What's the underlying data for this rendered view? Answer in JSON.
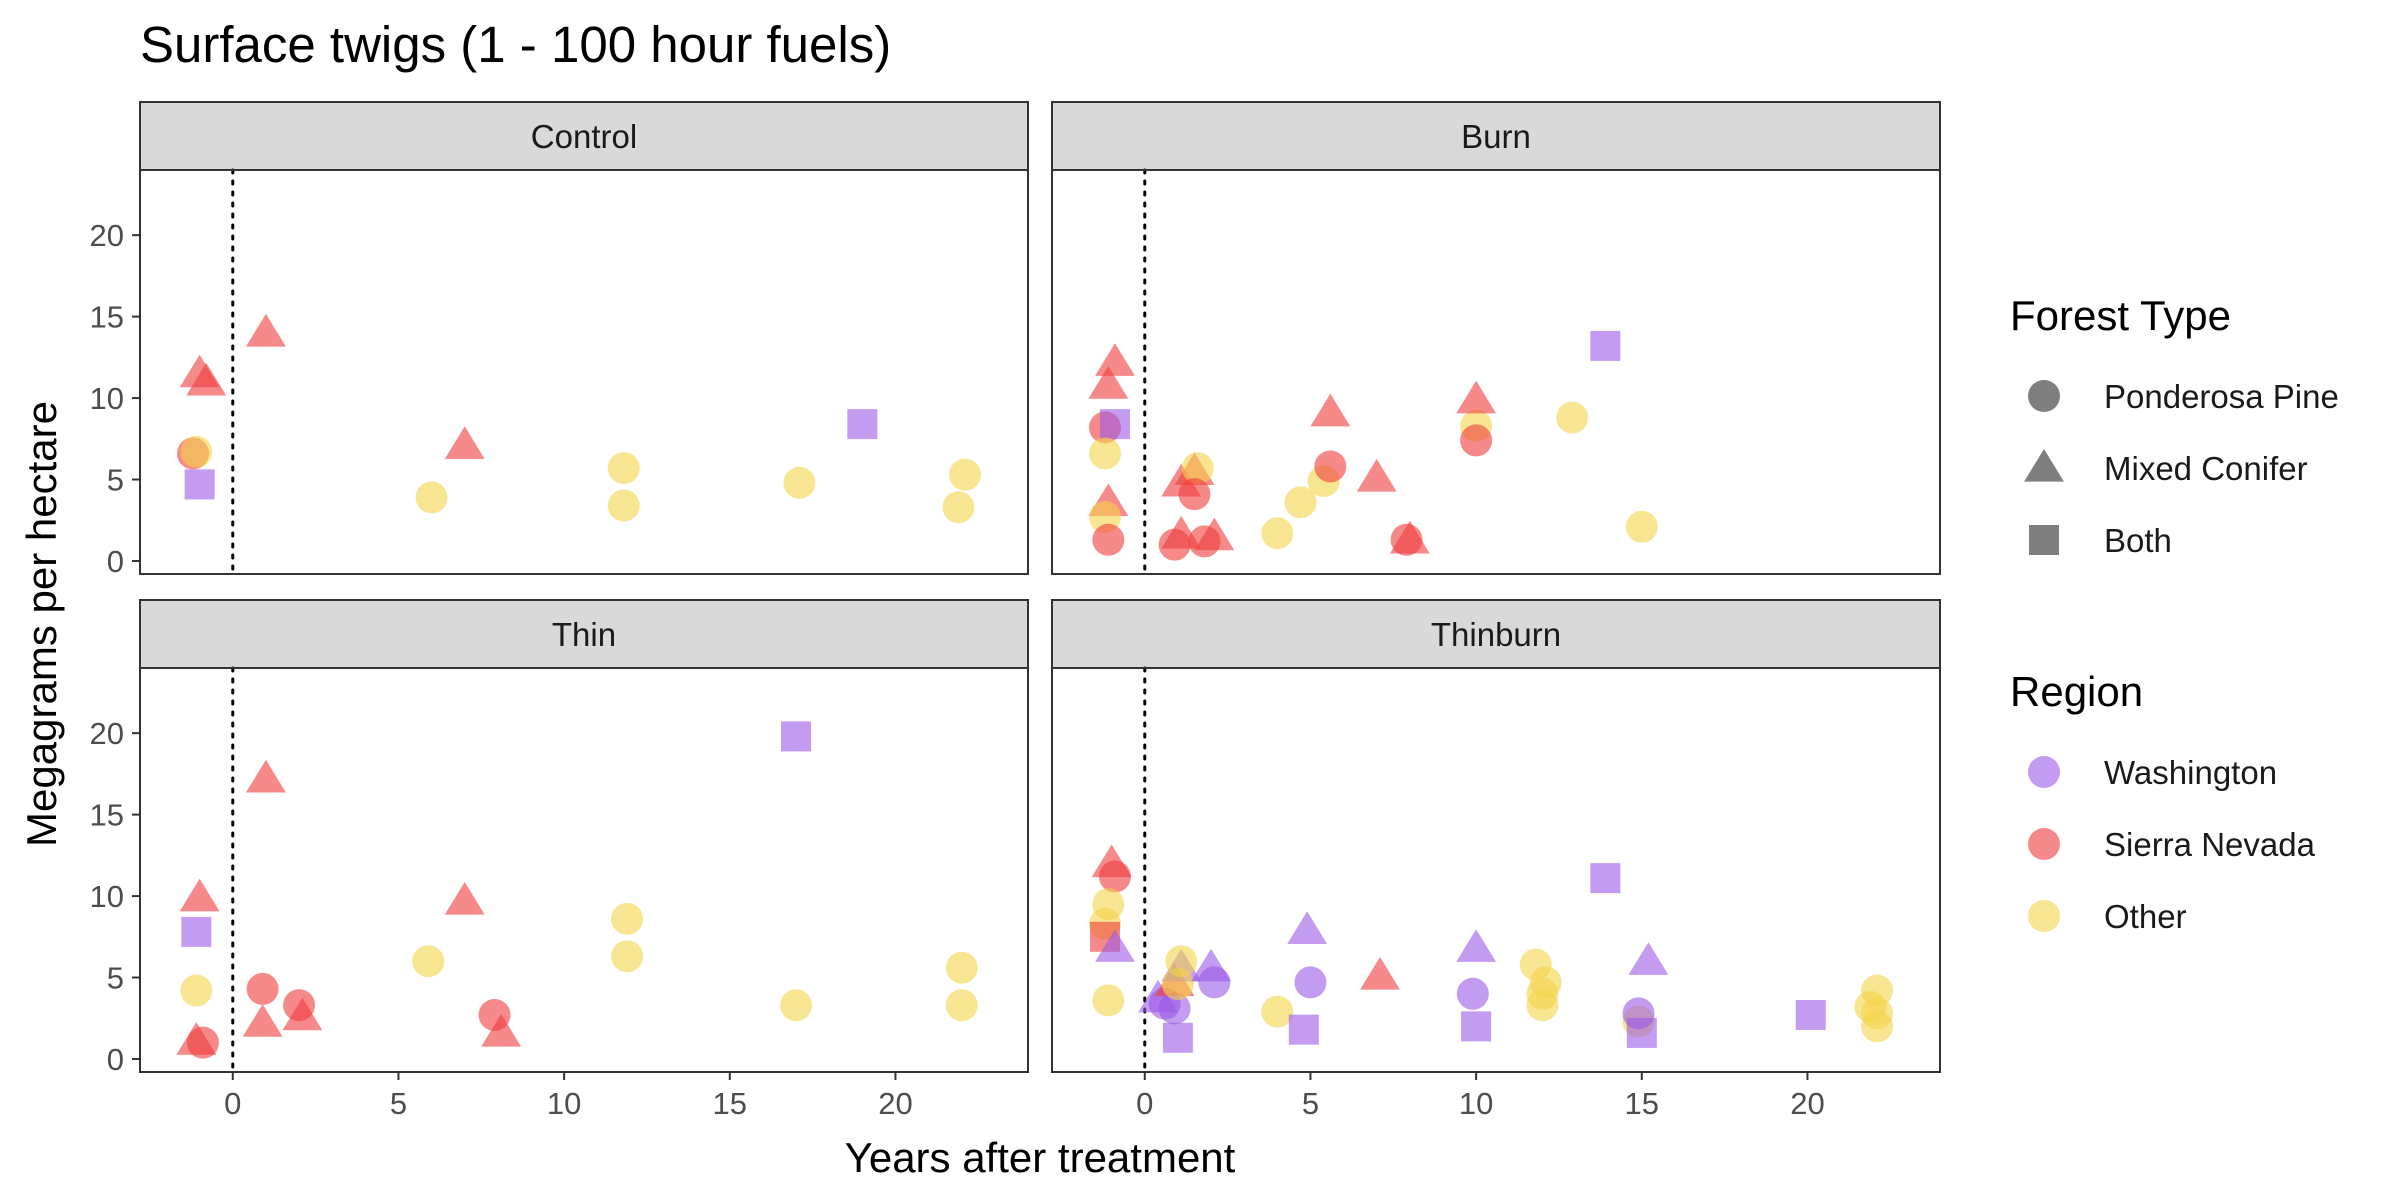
{
  "chart_data": {
    "type": "scatter",
    "title": "Surface twigs (1 - 100 hour fuels)",
    "xlabel": "Years after treatment",
    "ylabel": "Megagrams per hectare",
    "xlim": [
      -2.8,
      24.0
    ],
    "ylim": [
      -0.8,
      24.0
    ],
    "x_ticks": [
      0,
      5,
      10,
      15,
      20
    ],
    "y_ticks": [
      0,
      5,
      10,
      15,
      20
    ],
    "grid": false,
    "reference_line": {
      "x": 0,
      "style": "dotted"
    },
    "legend_position": "right",
    "colors": {
      "Washington": "#9b59e6",
      "Sierra Nevada": "#f03c3c",
      "Other": "#f4d44a"
    },
    "point_opacity": 0.6,
    "legends": {
      "forest_type": {
        "title": "Forest Type",
        "items": [
          {
            "label": "Ponderosa Pine",
            "shape": "circle"
          },
          {
            "label": "Mixed Conifer",
            "shape": "triangle"
          },
          {
            "label": "Both",
            "shape": "square"
          }
        ]
      },
      "region": {
        "title": "Region",
        "items": [
          {
            "label": "Washington"
          },
          {
            "label": "Sierra Nevada"
          },
          {
            "label": "Other"
          }
        ]
      }
    },
    "panels": [
      {
        "name": "Control",
        "points": [
          {
            "x": -1,
            "y": 11.5,
            "shape": "triangle",
            "region": "Sierra Nevada"
          },
          {
            "x": -0.8,
            "y": 11.0,
            "shape": "triangle",
            "region": "Sierra Nevada"
          },
          {
            "x": 1,
            "y": 14.0,
            "shape": "triangle",
            "region": "Sierra Nevada"
          },
          {
            "x": -1.2,
            "y": 6.6,
            "shape": "circle",
            "region": "Sierra Nevada"
          },
          {
            "x": -1.1,
            "y": 6.7,
            "shape": "circle",
            "region": "Other"
          },
          {
            "x": -1,
            "y": 4.7,
            "shape": "square",
            "region": "Washington"
          },
          {
            "x": 7,
            "y": 7.1,
            "shape": "triangle",
            "region": "Sierra Nevada"
          },
          {
            "x": 6,
            "y": 3.9,
            "shape": "circle",
            "region": "Other"
          },
          {
            "x": 11.8,
            "y": 5.7,
            "shape": "circle",
            "region": "Other"
          },
          {
            "x": 11.8,
            "y": 3.4,
            "shape": "circle",
            "region": "Other"
          },
          {
            "x": 17.1,
            "y": 4.8,
            "shape": "circle",
            "region": "Other"
          },
          {
            "x": 19,
            "y": 8.4,
            "shape": "square",
            "region": "Washington"
          },
          {
            "x": 22.1,
            "y": 5.3,
            "shape": "circle",
            "region": "Other"
          },
          {
            "x": 21.9,
            "y": 3.3,
            "shape": "circle",
            "region": "Other"
          }
        ]
      },
      {
        "name": "Burn",
        "points": [
          {
            "x": -0.9,
            "y": 12.2,
            "shape": "triangle",
            "region": "Sierra Nevada"
          },
          {
            "x": -1.1,
            "y": 10.8,
            "shape": "triangle",
            "region": "Sierra Nevada"
          },
          {
            "x": -1.2,
            "y": 8.2,
            "shape": "circle",
            "region": "Sierra Nevada"
          },
          {
            "x": -0.9,
            "y": 8.4,
            "shape": "square",
            "region": "Washington"
          },
          {
            "x": -1.2,
            "y": 6.6,
            "shape": "circle",
            "region": "Other"
          },
          {
            "x": -1.1,
            "y": 3.6,
            "shape": "triangle",
            "region": "Sierra Nevada"
          },
          {
            "x": -1.2,
            "y": 2.7,
            "shape": "circle",
            "region": "Other"
          },
          {
            "x": -1.1,
            "y": 1.3,
            "shape": "circle",
            "region": "Sierra Nevada"
          },
          {
            "x": 0.9,
            "y": 1.0,
            "shape": "circle",
            "region": "Sierra Nevada"
          },
          {
            "x": 1.1,
            "y": 1.6,
            "shape": "triangle",
            "region": "Sierra Nevada"
          },
          {
            "x": 1.1,
            "y": 4.8,
            "shape": "triangle",
            "region": "Sierra Nevada"
          },
          {
            "x": 1.5,
            "y": 5.5,
            "shape": "triangle",
            "region": "Sierra Nevada"
          },
          {
            "x": 1.6,
            "y": 5.7,
            "shape": "circle",
            "region": "Other"
          },
          {
            "x": 1.5,
            "y": 4.1,
            "shape": "circle",
            "region": "Sierra Nevada"
          },
          {
            "x": 1.8,
            "y": 1.2,
            "shape": "circle",
            "region": "Sierra Nevada"
          },
          {
            "x": 2.1,
            "y": 1.5,
            "shape": "triangle",
            "region": "Sierra Nevada"
          },
          {
            "x": 4,
            "y": 1.7,
            "shape": "circle",
            "region": "Other"
          },
          {
            "x": 4.7,
            "y": 3.6,
            "shape": "circle",
            "region": "Other"
          },
          {
            "x": 5.4,
            "y": 4.9,
            "shape": "circle",
            "region": "Other"
          },
          {
            "x": 5.6,
            "y": 5.8,
            "shape": "circle",
            "region": "Sierra Nevada"
          },
          {
            "x": 5.6,
            "y": 9.1,
            "shape": "triangle",
            "region": "Sierra Nevada"
          },
          {
            "x": 7,
            "y": 5.1,
            "shape": "triangle",
            "region": "Sierra Nevada"
          },
          {
            "x": 7.9,
            "y": 1.3,
            "shape": "circle",
            "region": "Sierra Nevada"
          },
          {
            "x": 8,
            "y": 1.3,
            "shape": "triangle",
            "region": "Sierra Nevada"
          },
          {
            "x": 10,
            "y": 8.3,
            "shape": "circle",
            "region": "Other"
          },
          {
            "x": 10,
            "y": 7.4,
            "shape": "circle",
            "region": "Sierra Nevada"
          },
          {
            "x": 10,
            "y": 9.9,
            "shape": "triangle",
            "region": "Sierra Nevada"
          },
          {
            "x": 12.9,
            "y": 8.8,
            "shape": "circle",
            "region": "Other"
          },
          {
            "x": 13.9,
            "y": 13.2,
            "shape": "square",
            "region": "Washington"
          },
          {
            "x": 15,
            "y": 2.1,
            "shape": "circle",
            "region": "Other"
          }
        ]
      },
      {
        "name": "Thin",
        "points": [
          {
            "x": -1,
            "y": 9.9,
            "shape": "triangle",
            "region": "Sierra Nevada"
          },
          {
            "x": -1.1,
            "y": 7.8,
            "shape": "square",
            "region": "Washington"
          },
          {
            "x": -1.1,
            "y": 4.2,
            "shape": "circle",
            "region": "Other"
          },
          {
            "x": -1.1,
            "y": 1.1,
            "shape": "triangle",
            "region": "Sierra Nevada"
          },
          {
            "x": -0.9,
            "y": 1.0,
            "shape": "circle",
            "region": "Sierra Nevada"
          },
          {
            "x": 1,
            "y": 17.2,
            "shape": "triangle",
            "region": "Sierra Nevada"
          },
          {
            "x": 0.9,
            "y": 4.3,
            "shape": "circle",
            "region": "Sierra Nevada"
          },
          {
            "x": 0.9,
            "y": 2.2,
            "shape": "triangle",
            "region": "Sierra Nevada"
          },
          {
            "x": 2,
            "y": 3.3,
            "shape": "circle",
            "region": "Sierra Nevada"
          },
          {
            "x": 2.1,
            "y": 2.6,
            "shape": "triangle",
            "region": "Sierra Nevada"
          },
          {
            "x": 5.9,
            "y": 6.0,
            "shape": "circle",
            "region": "Other"
          },
          {
            "x": 7,
            "y": 9.7,
            "shape": "triangle",
            "region": "Sierra Nevada"
          },
          {
            "x": 7.9,
            "y": 2.7,
            "shape": "circle",
            "region": "Sierra Nevada"
          },
          {
            "x": 8.1,
            "y": 1.6,
            "shape": "triangle",
            "region": "Sierra Nevada"
          },
          {
            "x": 11.9,
            "y": 8.6,
            "shape": "circle",
            "region": "Other"
          },
          {
            "x": 11.9,
            "y": 6.3,
            "shape": "circle",
            "region": "Other"
          },
          {
            "x": 17,
            "y": 19.8,
            "shape": "square",
            "region": "Washington"
          },
          {
            "x": 17,
            "y": 3.3,
            "shape": "circle",
            "region": "Other"
          },
          {
            "x": 22,
            "y": 5.6,
            "shape": "circle",
            "region": "Other"
          },
          {
            "x": 22,
            "y": 3.3,
            "shape": "circle",
            "region": "Other"
          }
        ]
      },
      {
        "name": "Thinburn",
        "points": [
          {
            "x": -1,
            "y": 12.0,
            "shape": "triangle",
            "region": "Sierra Nevada"
          },
          {
            "x": -0.9,
            "y": 11.2,
            "shape": "circle",
            "region": "Sierra Nevada"
          },
          {
            "x": -1.1,
            "y": 9.5,
            "shape": "circle",
            "region": "Other"
          },
          {
            "x": -1.2,
            "y": 8.3,
            "shape": "circle",
            "region": "Other"
          },
          {
            "x": -1.2,
            "y": 7.5,
            "shape": "square",
            "region": "Sierra Nevada"
          },
          {
            "x": -0.9,
            "y": 6.8,
            "shape": "triangle",
            "region": "Washington"
          },
          {
            "x": -1.1,
            "y": 3.6,
            "shape": "circle",
            "region": "Other"
          },
          {
            "x": 0.4,
            "y": 3.7,
            "shape": "triangle",
            "region": "Washington"
          },
          {
            "x": 0.6,
            "y": 3.4,
            "shape": "circle",
            "region": "Washington"
          },
          {
            "x": 0.9,
            "y": 3.1,
            "shape": "circle",
            "region": "Washington"
          },
          {
            "x": 0.9,
            "y": 4.7,
            "shape": "triangle",
            "region": "Sierra Nevada"
          },
          {
            "x": 1.1,
            "y": 5.6,
            "shape": "triangle",
            "region": "Washington"
          },
          {
            "x": 1.1,
            "y": 6.0,
            "shape": "circle",
            "region": "Other"
          },
          {
            "x": 1,
            "y": 4.6,
            "shape": "circle",
            "region": "Other"
          },
          {
            "x": 1,
            "y": 1.3,
            "shape": "square",
            "region": "Washington"
          },
          {
            "x": 2,
            "y": 5.6,
            "shape": "triangle",
            "region": "Washington"
          },
          {
            "x": 2.1,
            "y": 4.7,
            "shape": "circle",
            "region": "Washington"
          },
          {
            "x": 4,
            "y": 2.9,
            "shape": "circle",
            "region": "Other"
          },
          {
            "x": 4.9,
            "y": 7.9,
            "shape": "triangle",
            "region": "Washington"
          },
          {
            "x": 5,
            "y": 4.7,
            "shape": "circle",
            "region": "Washington"
          },
          {
            "x": 4.8,
            "y": 1.8,
            "shape": "square",
            "region": "Washington"
          },
          {
            "x": 7.1,
            "y": 5.1,
            "shape": "triangle",
            "region": "Sierra Nevada"
          },
          {
            "x": 10,
            "y": 6.8,
            "shape": "triangle",
            "region": "Washington"
          },
          {
            "x": 9.9,
            "y": 4.0,
            "shape": "circle",
            "region": "Washington"
          },
          {
            "x": 10,
            "y": 2.0,
            "shape": "square",
            "region": "Washington"
          },
          {
            "x": 11.8,
            "y": 5.8,
            "shape": "circle",
            "region": "Other"
          },
          {
            "x": 12.1,
            "y": 4.7,
            "shape": "circle",
            "region": "Other"
          },
          {
            "x": 12.0,
            "y": 4.0,
            "shape": "circle",
            "region": "Other"
          },
          {
            "x": 12.0,
            "y": 3.3,
            "shape": "circle",
            "region": "Other"
          },
          {
            "x": 13.9,
            "y": 11.1,
            "shape": "square",
            "region": "Washington"
          },
          {
            "x": 14.9,
            "y": 2.3,
            "shape": "circle",
            "region": "Other"
          },
          {
            "x": 14.9,
            "y": 2.8,
            "shape": "circle",
            "region": "Washington"
          },
          {
            "x": 15,
            "y": 1.6,
            "shape": "square",
            "region": "Washington"
          },
          {
            "x": 15.2,
            "y": 6.0,
            "shape": "triangle",
            "region": "Washington"
          },
          {
            "x": 20.1,
            "y": 2.7,
            "shape": "square",
            "region": "Washington"
          },
          {
            "x": 22.1,
            "y": 4.2,
            "shape": "circle",
            "region": "Other"
          },
          {
            "x": 21.9,
            "y": 3.2,
            "shape": "circle",
            "region": "Other"
          },
          {
            "x": 22.1,
            "y": 2.8,
            "shape": "circle",
            "region": "Other"
          },
          {
            "x": 22.1,
            "y": 2.0,
            "shape": "circle",
            "region": "Other"
          }
        ]
      }
    ]
  }
}
